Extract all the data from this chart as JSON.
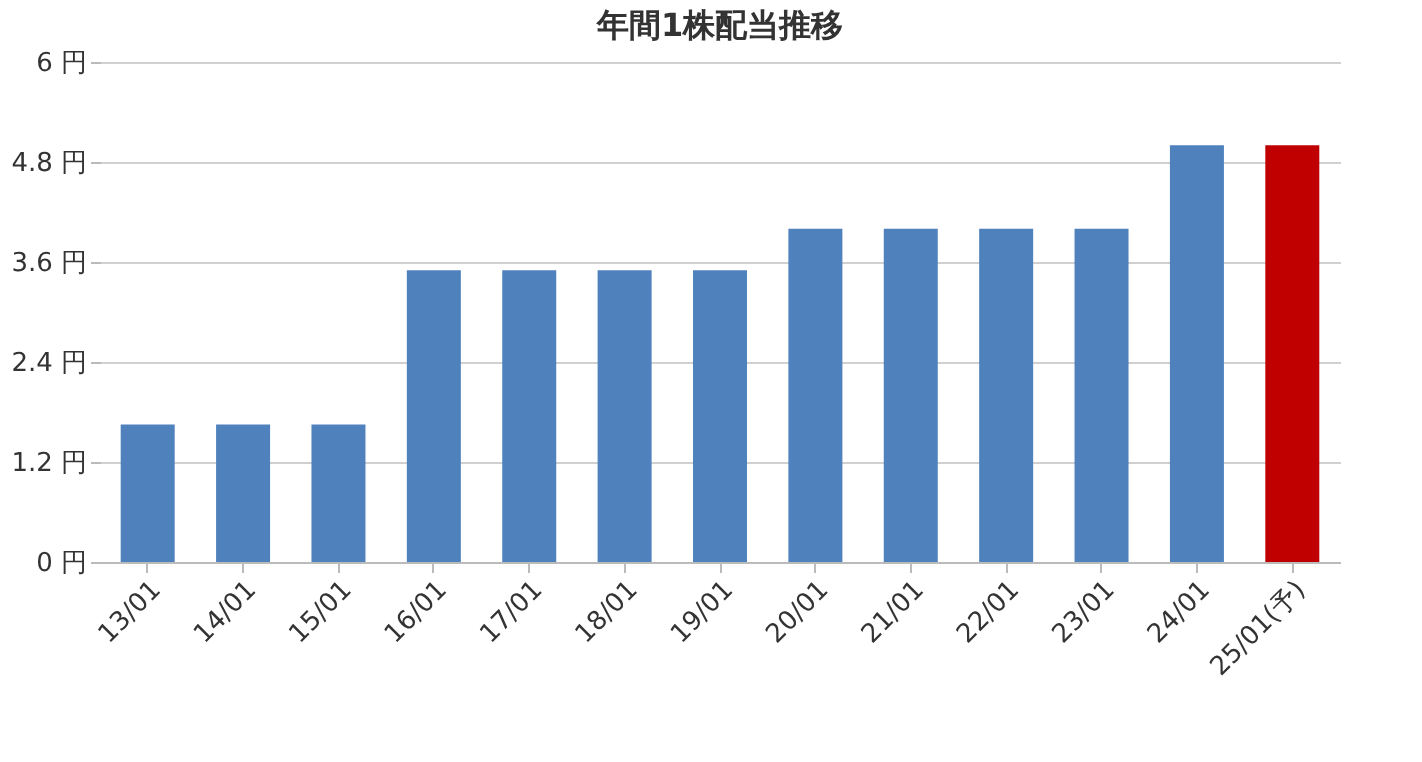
{
  "chart_data": {
    "type": "bar",
    "title": "年間1株配当推移",
    "categories": [
      "13/01",
      "14/01",
      "15/01",
      "16/01",
      "17/01",
      "18/01",
      "19/01",
      "20/01",
      "21/01",
      "22/01",
      "23/01",
      "24/01",
      "25/01(予)"
    ],
    "values": [
      1.65,
      1.65,
      1.65,
      3.5,
      3.5,
      3.5,
      3.5,
      4,
      4,
      4,
      4,
      5,
      5
    ],
    "colors": [
      "#4f81bd",
      "#4f81bd",
      "#4f81bd",
      "#4f81bd",
      "#4f81bd",
      "#4f81bd",
      "#4f81bd",
      "#4f81bd",
      "#4f81bd",
      "#4f81bd",
      "#4f81bd",
      "#4f81bd",
      "#c00000"
    ],
    "ylim": [
      0,
      6
    ],
    "yticks": [
      {
        "value": 0,
        "label": "0 円"
      },
      {
        "value": 1.2,
        "label": "1.2 円"
      },
      {
        "value": 2.4,
        "label": "2.4 円"
      },
      {
        "value": 3.6,
        "label": "3.6 円"
      },
      {
        "value": 4.8,
        "label": "4.8 円"
      },
      {
        "value": 6,
        "label": "6 円"
      }
    ],
    "grid": "y"
  }
}
